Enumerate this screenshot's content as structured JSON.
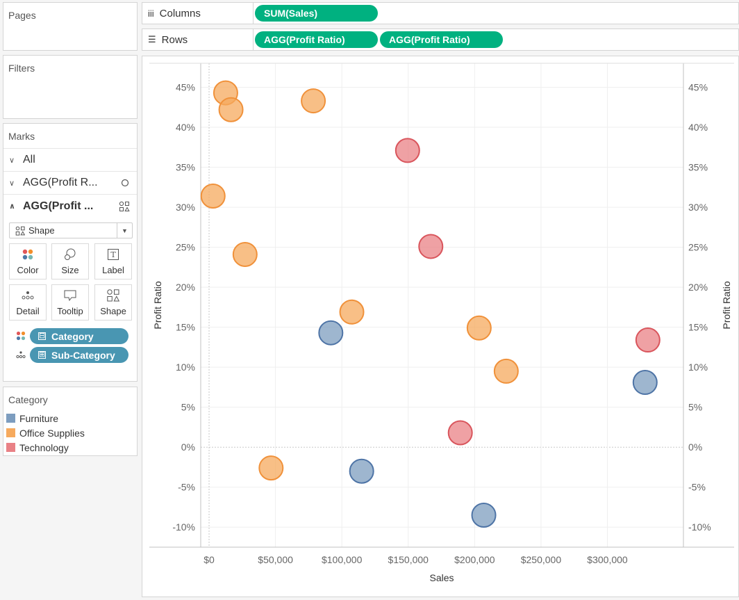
{
  "pages": {
    "title": "Pages"
  },
  "filters": {
    "title": "Filters"
  },
  "marks": {
    "title": "Marks",
    "rows": [
      {
        "label": "All",
        "icon": "chevron-down-icon"
      },
      {
        "label": "AGG(Profit R...",
        "icon": "chevron-down-icon",
        "type_icon": "circle-icon"
      },
      {
        "label": "AGG(Profit ...",
        "icon": "chevron-up-icon",
        "type_icon": "shape-icon"
      }
    ],
    "mark_type": "Shape",
    "cards": [
      {
        "label": "Color",
        "icon": "color-icon"
      },
      {
        "label": "Size",
        "icon": "size-icon"
      },
      {
        "label": "Label",
        "icon": "label-icon"
      },
      {
        "label": "Detail",
        "icon": "detail-icon"
      },
      {
        "label": "Tooltip",
        "icon": "tooltip-icon"
      },
      {
        "label": "Shape",
        "icon": "shape-icon"
      }
    ],
    "pills": [
      {
        "label": "Category",
        "role": "color",
        "expander": "⊟"
      },
      {
        "label": "Sub-Category",
        "role": "detail",
        "expander": "⊞"
      }
    ]
  },
  "legend": {
    "title": "Category",
    "items": [
      {
        "label": "Furniture",
        "color": "#7d9dbf"
      },
      {
        "label": "Office Supplies",
        "color": "#f6aa5e"
      },
      {
        "label": "Technology",
        "color": "#e98186"
      }
    ]
  },
  "shelves": {
    "columns": {
      "label": "Columns",
      "icon": "columns-icon",
      "pills": [
        "SUM(Sales)"
      ]
    },
    "rows": {
      "label": "Rows",
      "icon": "rows-icon",
      "pills": [
        "AGG(Profit Ratio)",
        "AGG(Profit Ratio)"
      ]
    }
  },
  "chart_data": {
    "type": "scatter",
    "xlabel": "Sales",
    "ylabel": "Profit Ratio",
    "ylabel_right": "Profit Ratio",
    "xlim": [
      -45000,
      351000
    ],
    "ylim": [
      -0.125,
      0.48
    ],
    "xticks": [
      0,
      50000,
      100000,
      150000,
      200000,
      250000,
      300000
    ],
    "xtick_labels": [
      "$0",
      "$50,000",
      "$100,000",
      "$150,000",
      "$200,000",
      "$250,000",
      "$300,000"
    ],
    "yticks": [
      -0.1,
      -0.05,
      0.0,
      0.05,
      0.1,
      0.15,
      0.2,
      0.25,
      0.3,
      0.35,
      0.4,
      0.45
    ],
    "ytick_labels": [
      "-10%",
      "-5%",
      "0%",
      "5%",
      "10%",
      "15%",
      "20%",
      "25%",
      "30%",
      "35%",
      "40%",
      "45%"
    ],
    "colors": {
      "Furniture": "#7d9dbf",
      "Office Supplies": "#f6aa5e",
      "Technology": "#e98186"
    },
    "strokes": {
      "Furniture": "#4e74a6",
      "Office Supplies": "#f0913a",
      "Technology": "#d9555c"
    },
    "series": [
      {
        "name": "Furniture",
        "points": [
          [
            91700,
            0.143
          ],
          [
            114900,
            -0.03
          ],
          [
            206900,
            -0.085
          ],
          [
            328400,
            0.081
          ]
        ]
      },
      {
        "name": "Office Supplies",
        "points": [
          [
            12500,
            0.443
          ],
          [
            16500,
            0.422
          ],
          [
            78500,
            0.433
          ],
          [
            3000,
            0.314
          ],
          [
            27100,
            0.241
          ],
          [
            107500,
            0.169
          ],
          [
            203400,
            0.149
          ],
          [
            223800,
            0.095
          ],
          [
            46700,
            -0.026
          ]
        ]
      },
      {
        "name": "Technology",
        "points": [
          [
            149500,
            0.371
          ],
          [
            167000,
            0.251
          ],
          [
            189200,
            0.018
          ],
          [
            330500,
            0.134
          ]
        ]
      }
    ]
  }
}
